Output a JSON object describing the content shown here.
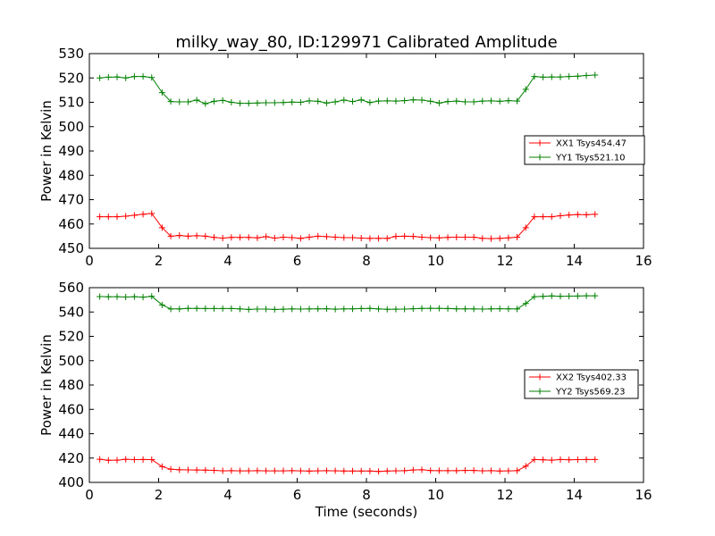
{
  "figure": {
    "title": "milky_way_80, ID:129971 Calibrated Amplitude"
  },
  "chart_data": [
    {
      "type": "line",
      "title": "milky_way_80, ID:129971 Calibrated Amplitude",
      "xlabel": "",
      "ylabel": "Power in Kelvin",
      "xlim": [
        0,
        16
      ],
      "ylim": [
        450,
        530
      ],
      "xticks": [
        "0",
        "2",
        "4",
        "6",
        "8",
        "10",
        "12",
        "14",
        "16"
      ],
      "yticks": [
        "450",
        "460",
        "470",
        "480",
        "490",
        "500",
        "510",
        "520",
        "530"
      ],
      "legend_position": "right",
      "grid": false,
      "x": [
        0.3,
        0.55,
        0.8,
        1.05,
        1.3,
        1.55,
        1.8,
        2.1,
        2.35,
        2.6,
        2.85,
        3.1,
        3.35,
        3.6,
        3.85,
        4.1,
        4.35,
        4.6,
        4.85,
        5.1,
        5.35,
        5.6,
        5.85,
        6.1,
        6.35,
        6.6,
        6.85,
        7.1,
        7.35,
        7.6,
        7.85,
        8.1,
        8.35,
        8.6,
        8.85,
        9.1,
        9.35,
        9.6,
        9.85,
        10.1,
        10.35,
        10.6,
        10.85,
        11.1,
        11.35,
        11.6,
        11.85,
        12.1,
        12.35,
        12.6,
        12.85,
        13.1,
        13.35,
        13.6,
        13.85,
        14.1,
        14.35,
        14.6
      ],
      "series": [
        {
          "name": "XX1 Tsys454.47",
          "color": "#ff0000",
          "values": [
            463,
            463,
            463,
            463.2,
            463.6,
            464,
            464.3,
            458.5,
            455,
            455.3,
            455,
            455.2,
            455,
            454.5,
            454.2,
            454.5,
            454.5,
            454.5,
            454.3,
            454.8,
            454.2,
            454.6,
            454.4,
            454.1,
            454.6,
            455,
            454.8,
            454.6,
            454.4,
            454.4,
            454.2,
            454.1,
            454.1,
            454.1,
            454.9,
            455,
            454.9,
            454.6,
            454.4,
            454.3,
            454.5,
            454.6,
            454.6,
            454.6,
            454.1,
            454,
            454.1,
            454.3,
            454.6,
            458.5,
            463,
            463,
            463,
            463.4,
            463.7,
            463.9,
            463.8,
            464
          ]
        },
        {
          "name": "YY1 Tsys521.10",
          "color": "#008000",
          "values": [
            520,
            520.3,
            520.4,
            520,
            520.6,
            520.6,
            520.2,
            514,
            510.3,
            510.2,
            510.2,
            510.9,
            509.4,
            510.4,
            510.8,
            510,
            509.6,
            509.6,
            509.7,
            509.8,
            509.8,
            509.9,
            510.1,
            510,
            510.6,
            510.4,
            509.7,
            510.2,
            510.9,
            510.3,
            511,
            509.9,
            510.5,
            510.6,
            510.5,
            510.7,
            511,
            510.9,
            510.4,
            509.7,
            510.3,
            510.5,
            510.2,
            510.2,
            510.5,
            510.6,
            510.4,
            510.7,
            510.5,
            515.3,
            520.6,
            520.3,
            520.4,
            520.4,
            520.6,
            520.7,
            521,
            521.2
          ]
        }
      ]
    },
    {
      "type": "line",
      "title": "",
      "xlabel": "Time (seconds)",
      "ylabel": "Power in Kelvin",
      "xlim": [
        0,
        16
      ],
      "ylim": [
        400,
        560
      ],
      "xticks": [
        "0",
        "2",
        "4",
        "6",
        "8",
        "10",
        "12",
        "14",
        "16"
      ],
      "yticks": [
        "400",
        "420",
        "440",
        "460",
        "480",
        "500",
        "520",
        "540",
        "560"
      ],
      "legend_position": "right",
      "grid": false,
      "x": [
        0.3,
        0.55,
        0.8,
        1.05,
        1.3,
        1.55,
        1.8,
        2.1,
        2.35,
        2.6,
        2.85,
        3.1,
        3.35,
        3.6,
        3.85,
        4.1,
        4.35,
        4.6,
        4.85,
        5.1,
        5.35,
        5.6,
        5.85,
        6.1,
        6.35,
        6.6,
        6.85,
        7.1,
        7.35,
        7.6,
        7.85,
        8.1,
        8.35,
        8.6,
        8.85,
        9.1,
        9.35,
        9.6,
        9.85,
        10.1,
        10.35,
        10.6,
        10.85,
        11.1,
        11.35,
        11.6,
        11.85,
        12.1,
        12.35,
        12.6,
        12.85,
        13.1,
        13.35,
        13.6,
        13.85,
        14.1,
        14.35,
        14.6
      ],
      "series": [
        {
          "name": "XX2 Tsys402.33",
          "color": "#ff0000",
          "values": [
            419,
            418.2,
            418.3,
            419,
            418.7,
            418.8,
            418.7,
            413,
            410.8,
            410.4,
            410.3,
            410.2,
            410.1,
            409.9,
            409.5,
            409.6,
            409.5,
            409.5,
            409.6,
            409.5,
            409.5,
            409.5,
            409.6,
            409.5,
            409.3,
            409.5,
            409.6,
            409.5,
            409.4,
            409.4,
            409.4,
            409.4,
            409,
            409.4,
            409.5,
            409.6,
            410.2,
            410.4,
            409.7,
            409.6,
            409.6,
            409.6,
            409.8,
            409.8,
            409.5,
            409.6,
            409.4,
            409.5,
            409.6,
            413.3,
            418.8,
            418.6,
            418.3,
            418.8,
            418.6,
            418.7,
            418.8,
            418.8
          ]
        },
        {
          "name": "YY2 Tsys569.23",
          "color": "#008000",
          "values": [
            552.7,
            552.5,
            552.6,
            552.3,
            552.6,
            552.2,
            552.9,
            545.8,
            542.5,
            542.5,
            542.9,
            542.9,
            542.8,
            542.8,
            542.8,
            542.8,
            542.5,
            542.1,
            542.4,
            542.4,
            542.1,
            542.3,
            542.5,
            542.4,
            542.5,
            542.6,
            542.7,
            542.3,
            542.5,
            542.6,
            542.8,
            542.9,
            542.5,
            542.2,
            542.3,
            542.4,
            542.7,
            542.9,
            543,
            543,
            542.8,
            542.6,
            542.6,
            542.5,
            542.4,
            542.6,
            542.7,
            542.6,
            542.5,
            547,
            552.6,
            552.8,
            553.2,
            552.9,
            553,
            553.1,
            553.3,
            553.3
          ]
        }
      ]
    }
  ]
}
